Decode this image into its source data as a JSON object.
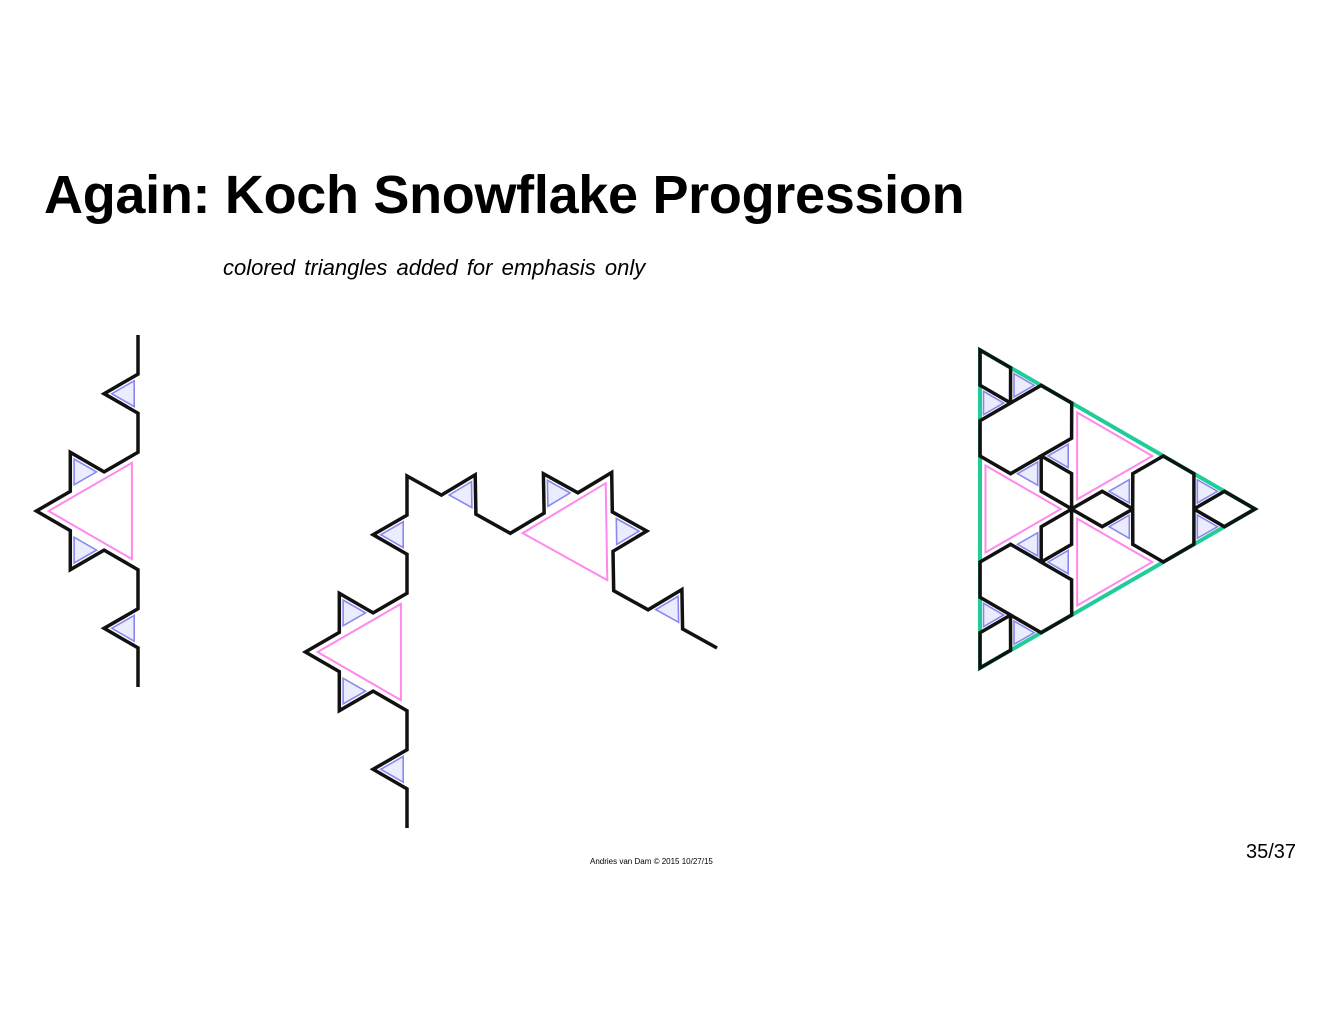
{
  "slide": {
    "title": "Again: Koch Snowflake Progression",
    "subtitle": "colored triangles added for emphasis only",
    "footer": "Andries van Dam © 2015 10/27/15",
    "page_number": "35/37"
  },
  "diagram": {
    "stages": [
      {
        "name": "koch-curve-segment",
        "order": 2
      },
      {
        "name": "koch-curve-corner",
        "order": 2
      },
      {
        "name": "koch-snowflake",
        "order": 2
      }
    ],
    "colors": {
      "curve": "#111111",
      "level1_triangle": "#ff88ee",
      "level2_triangle": "#8888ee",
      "level2_fill": "#ddddff",
      "base_triangle": "#22cc99"
    }
  }
}
